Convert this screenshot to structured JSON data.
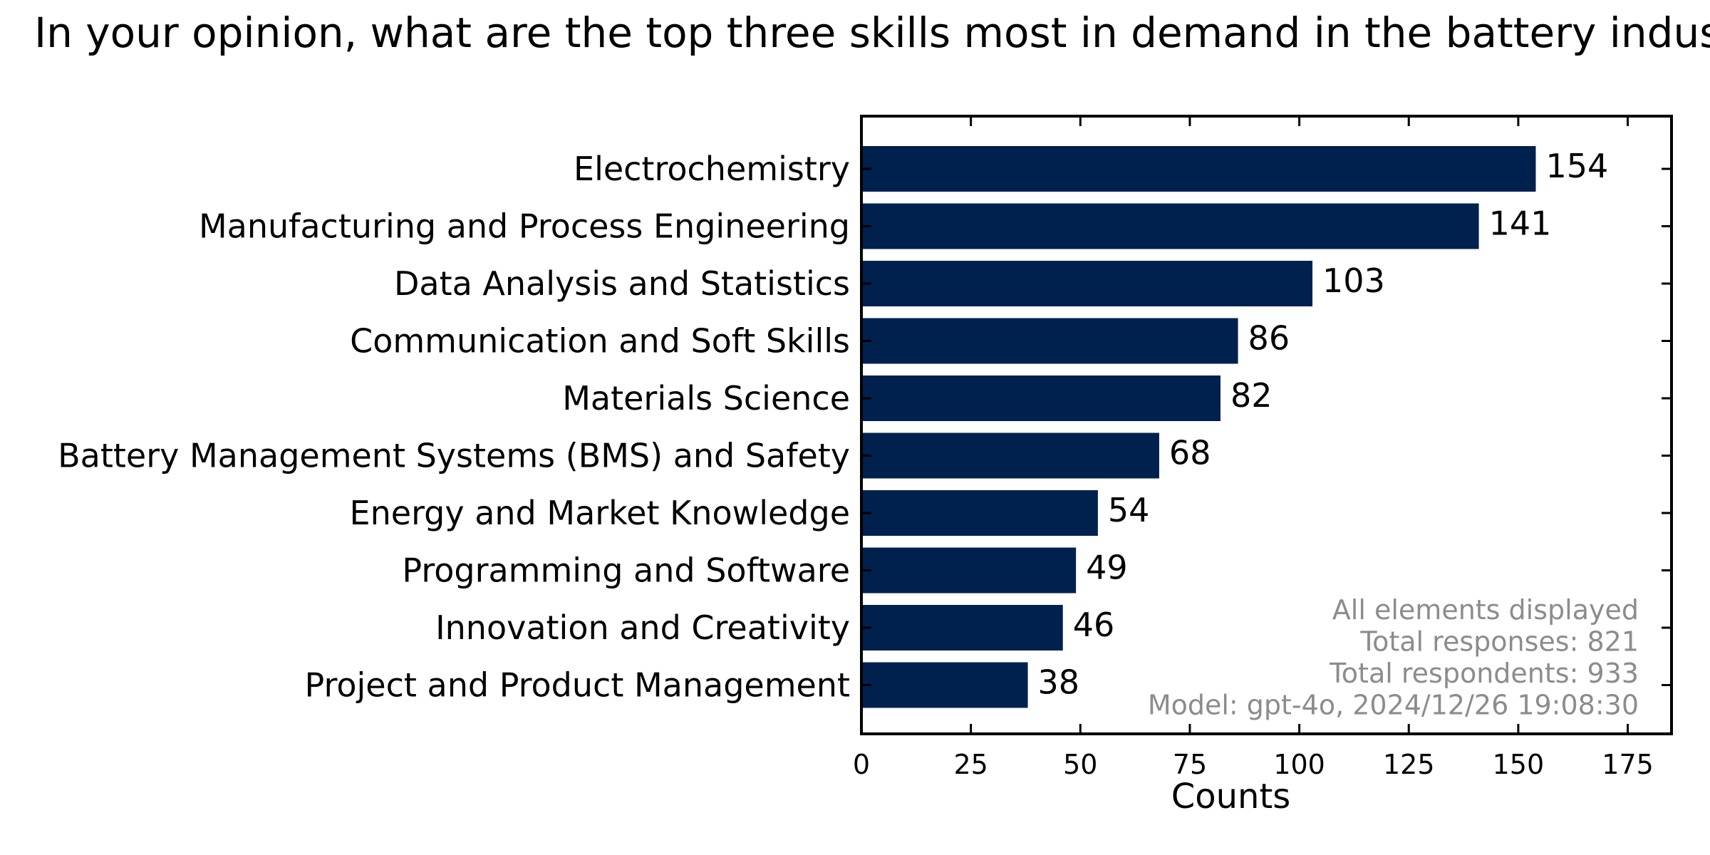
{
  "chart_data": {
    "type": "bar",
    "orientation": "horizontal",
    "title": "In your opinion, what are the top three skills most in demand in the battery industry?",
    "categories": [
      "Electrochemistry",
      "Manufacturing and Process Engineering",
      "Data Analysis and Statistics",
      "Communication and Soft Skills",
      "Materials Science",
      "Battery Management Systems (BMS) and Safety",
      "Energy and Market Knowledge",
      "Programming and Software",
      "Innovation and Creativity",
      "Project and Product Management"
    ],
    "values": [
      154,
      141,
      103,
      86,
      82,
      68,
      54,
      49,
      46,
      38
    ],
    "xlabel": "Counts",
    "ylabel": "",
    "xlim": [
      0,
      185
    ],
    "xticks": [
      0,
      25,
      50,
      75,
      100,
      125,
      150,
      175
    ],
    "bar_color": "#00204e",
    "grid": false,
    "legend": "none",
    "annotations": [
      "All elements displayed",
      "Total responses: 821",
      "Total respondents: 933",
      "Model: gpt-4o, 2024/12/26 19:08:30"
    ],
    "annotation_color": "#8c8c8c"
  }
}
